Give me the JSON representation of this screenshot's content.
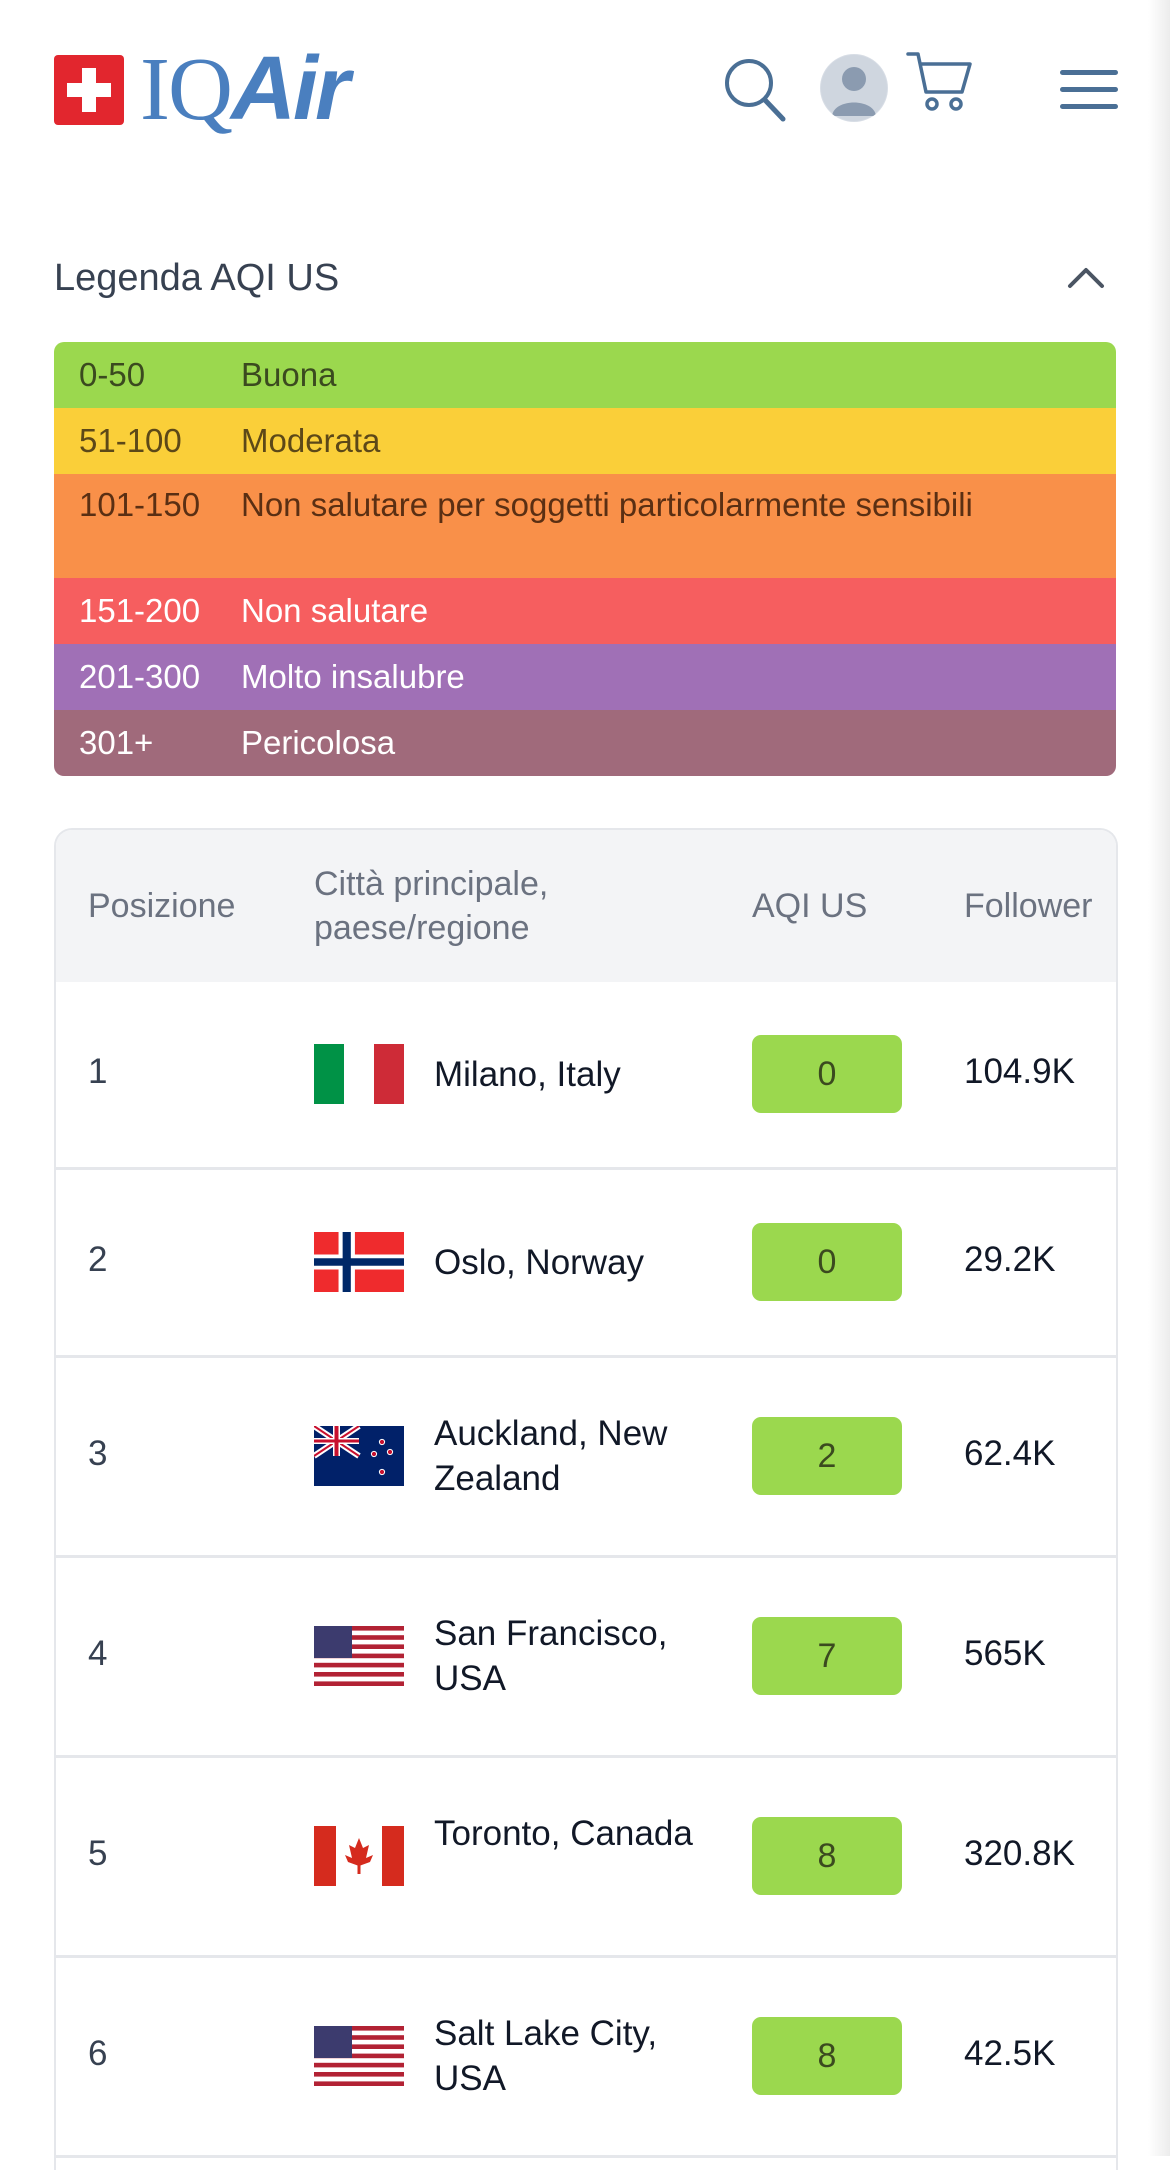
{
  "header": {
    "logo_text_iq": "IQ",
    "logo_text_air": "Air",
    "icons": [
      "swiss-flag-icon",
      "search-icon",
      "avatar",
      "cart-icon",
      "menu-icon"
    ],
    "brand_color": "#4a7fbf"
  },
  "legend": {
    "title": "Legenda AQI US",
    "rows": [
      {
        "range": "0-50",
        "label": "Buona",
        "color": "#9bd84e"
      },
      {
        "range": "51-100",
        "label": "Moderata",
        "color": "#facf39"
      },
      {
        "range": "101-150",
        "label": "Non salutare per soggetti particolarmente sensibili",
        "color": "#f99049"
      },
      {
        "range": "151-200",
        "label": "Non salutare",
        "color": "#f65e5f"
      },
      {
        "range": "201-300",
        "label": "Molto insalubre",
        "color": "#a070b6"
      },
      {
        "range": "301+",
        "label": "Pericolosa",
        "color": "#a06a7b"
      }
    ]
  },
  "table": {
    "headers": {
      "rank": "Posizione",
      "city": "Città principale, paese/regione",
      "aqi": "AQI US",
      "followers": "Follower"
    },
    "rows": [
      {
        "rank": "1",
        "city": "Milano, Italy",
        "flag": "italy-flag-icon",
        "aqi": "0",
        "followers": "104.9K"
      },
      {
        "rank": "2",
        "city": "Oslo, Norway",
        "flag": "norway-flag-icon",
        "aqi": "0",
        "followers": "29.2K"
      },
      {
        "rank": "3",
        "city": "Auckland, New Zealand",
        "flag": "new-zealand-flag-icon",
        "aqi": "2",
        "followers": "62.4K"
      },
      {
        "rank": "4",
        "city": "San Francisco, USA",
        "flag": "usa-flag-icon",
        "aqi": "7",
        "followers": "565K"
      },
      {
        "rank": "5",
        "city": "Toronto, Canada",
        "flag": "canada-flag-icon",
        "aqi": "8",
        "followers": "320.8K"
      },
      {
        "rank": "6",
        "city": "Salt Lake City, USA",
        "flag": "usa-flag-icon",
        "aqi": "8",
        "followers": "42.5K"
      }
    ],
    "good_color": "#9bd84e"
  }
}
